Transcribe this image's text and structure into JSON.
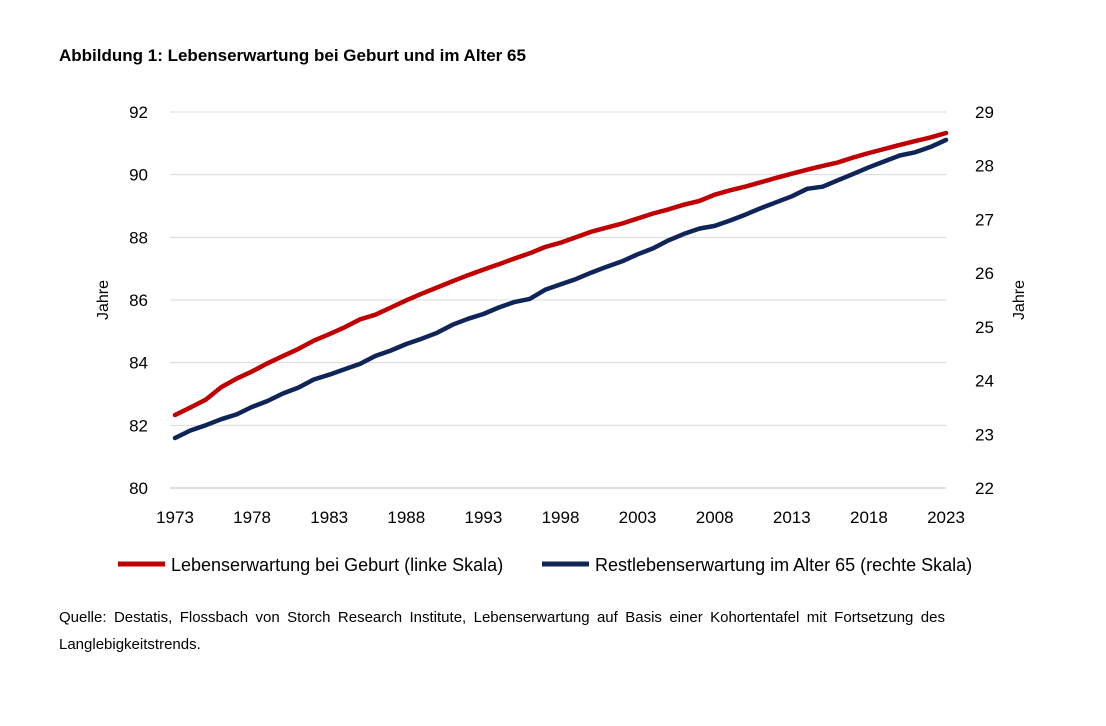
{
  "title": "Abbildung 1: Lebenserwartung bei Geburt und im Alter 65",
  "source": "Quelle: Destatis, Flossbach von Storch Research Institute, Lebenserwartung auf Basis einer Kohortentafel mit Fortsetzung des Langlebigkeitstrends.",
  "chart_data": {
    "type": "line",
    "xlabel": "",
    "ylabel_left": "Jahre",
    "ylabel_right": "Jahre",
    "ylim_left": [
      80,
      92
    ],
    "ylim_right": [
      22,
      29
    ],
    "yticks_left": [
      "80",
      "82",
      "84",
      "86",
      "88",
      "90",
      "92"
    ],
    "yticks_right": [
      "22",
      "23",
      "24",
      "25",
      "26",
      "27",
      "28",
      "29"
    ],
    "xlim": [
      1973,
      2023
    ],
    "xticks": [
      "1973",
      "1978",
      "1983",
      "1988",
      "1993",
      "1998",
      "2003",
      "2008",
      "2013",
      "2018",
      "2023"
    ],
    "grid": true,
    "legend_position": "bottom",
    "colors": {
      "left_series": "#c00000",
      "right_series": "#0f2557",
      "grid": "#d9d9d9"
    },
    "x": [
      1973,
      1974,
      1975,
      1976,
      1977,
      1978,
      1979,
      1980,
      1981,
      1982,
      1983,
      1984,
      1985,
      1986,
      1987,
      1988,
      1989,
      1990,
      1991,
      1992,
      1993,
      1994,
      1995,
      1996,
      1997,
      1998,
      1999,
      2000,
      2001,
      2002,
      2003,
      2004,
      2005,
      2006,
      2007,
      2008,
      2009,
      2010,
      2011,
      2012,
      2013,
      2014,
      2015,
      2016,
      2017,
      2018,
      2019,
      2020,
      2021,
      2022,
      2023
    ],
    "series": [
      {
        "name": "Lebenserwartung bei Geburt (linke Skala)",
        "axis": "left",
        "values": [
          82.33,
          82.57,
          82.82,
          83.22,
          83.49,
          83.72,
          83.98,
          84.21,
          84.44,
          84.7,
          84.91,
          85.13,
          85.38,
          85.53,
          85.76,
          85.99,
          86.2,
          86.4,
          86.6,
          86.79,
          86.97,
          87.14,
          87.32,
          87.49,
          87.69,
          87.83,
          88.0,
          88.18,
          88.31,
          88.44,
          88.6,
          88.76,
          88.89,
          89.04,
          89.16,
          89.36,
          89.5,
          89.62,
          89.76,
          89.9,
          90.03,
          90.16,
          90.28,
          90.39,
          90.55,
          90.69,
          90.82,
          90.95,
          91.07,
          91.19,
          91.33
        ]
      },
      {
        "name": "Restlebenserwartung im Alter 65 (rechte Skala)",
        "axis": "right",
        "values": [
          22.93,
          23.07,
          23.17,
          23.28,
          23.37,
          23.51,
          23.62,
          23.76,
          23.87,
          24.02,
          24.11,
          24.21,
          24.31,
          24.46,
          24.56,
          24.68,
          24.78,
          24.89,
          25.04,
          25.15,
          25.24,
          25.36,
          25.46,
          25.52,
          25.69,
          25.79,
          25.89,
          26.01,
          26.12,
          26.22,
          26.35,
          26.46,
          26.61,
          26.73,
          26.83,
          26.88,
          26.98,
          27.09,
          27.21,
          27.32,
          27.43,
          27.57,
          27.61,
          27.73,
          27.85,
          27.97,
          28.08,
          28.19,
          28.25,
          28.35,
          28.48
        ]
      }
    ]
  }
}
